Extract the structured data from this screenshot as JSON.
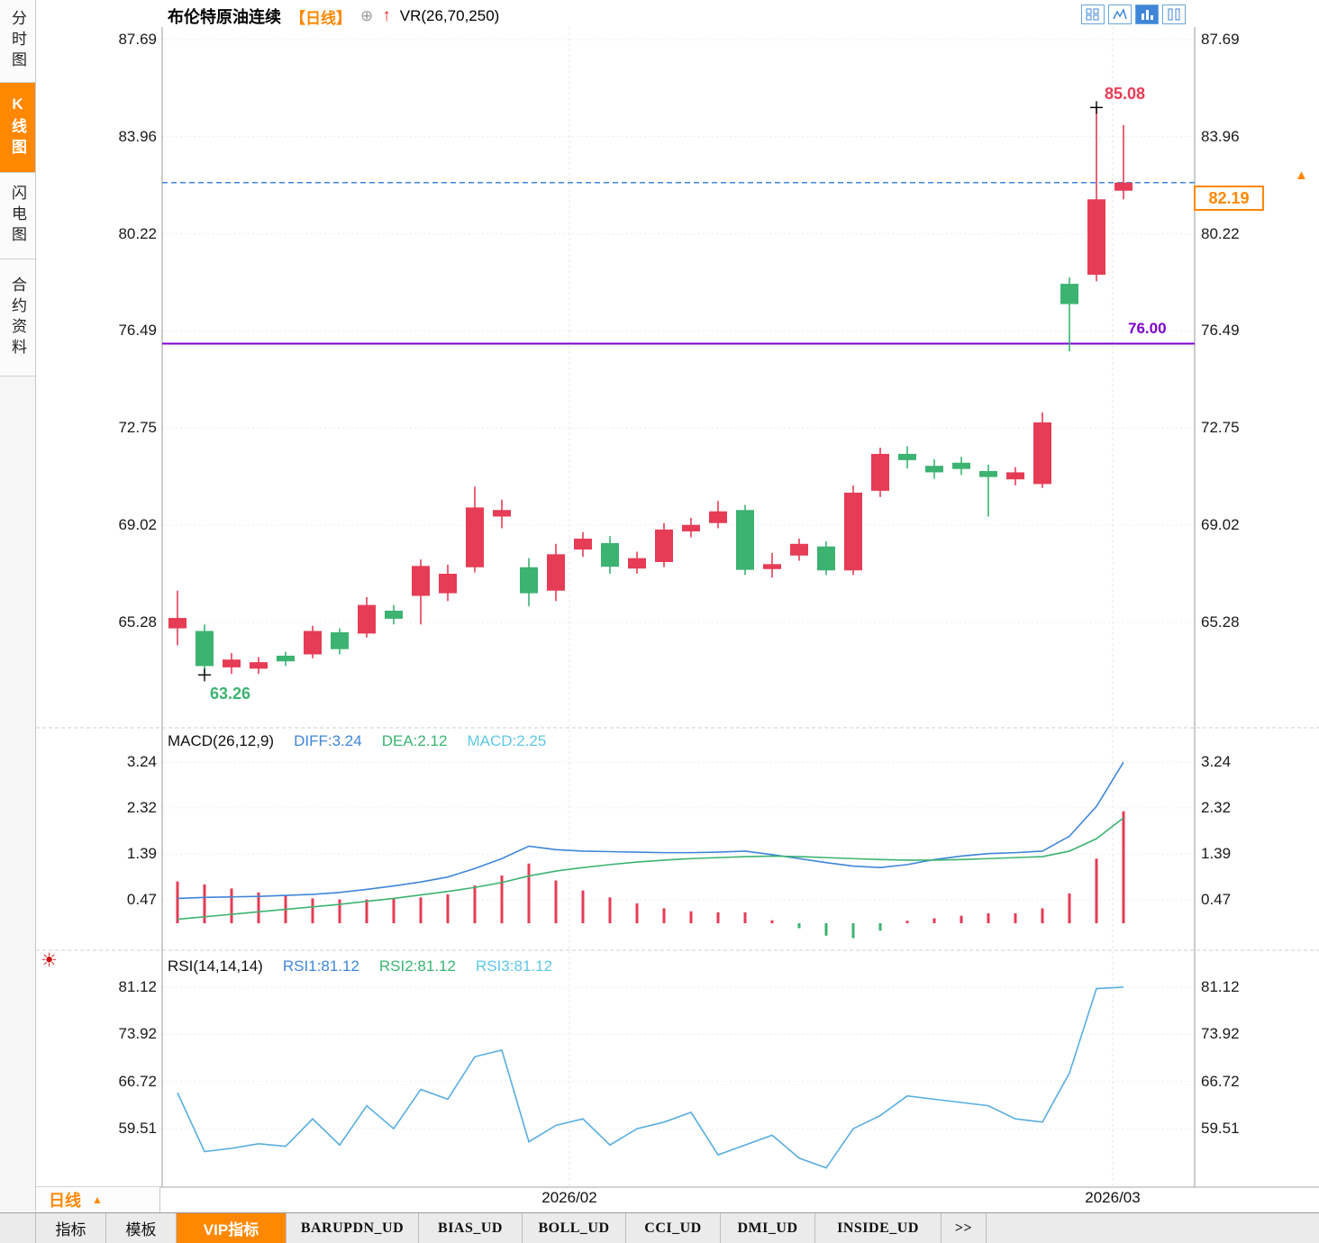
{
  "sidebar": {
    "items": [
      {
        "label": "分时图",
        "active": false
      },
      {
        "label": "K线图",
        "active": true
      },
      {
        "label": "闪电图",
        "active": false
      },
      {
        "label": "合约资料",
        "active": false
      }
    ]
  },
  "header": {
    "title": "布伦特原油连续",
    "period": "【日线】",
    "indicator": "VR(26,70,250)"
  },
  "icons": {
    "add": "⊕",
    "up_arrow": "↑",
    "sun": "☀",
    "tab_arrow": "▲",
    "scroll_arrow": "▲"
  },
  "annotations": {
    "high": "85.08",
    "low": "63.26",
    "support": "76.00",
    "last_price": "82.19"
  },
  "macd_header": {
    "title": "MACD(26,12,9)",
    "diff": "DIFF:3.24",
    "dea": "DEA:2.12",
    "macd": "MACD:2.25"
  },
  "rsi_header": {
    "title": "RSI(14,14,14)",
    "rsi1": "RSI1:81.12",
    "rsi2": "RSI2:81.12",
    "rsi3": "RSI3:81.12"
  },
  "x_axis": {
    "labels": [
      "2026/02",
      "2026/03"
    ]
  },
  "bottom": {
    "period": "日线",
    "tabs": [
      "指标",
      "模板",
      "VIP指标",
      "BARUPDN_UD",
      "BIAS_UD",
      "BOLL_UD",
      "CCI_UD",
      "DMI_UD",
      "INSIDE_UD",
      ">>"
    ]
  },
  "chart_data": {
    "type": "candlestick",
    "title": "布伦特原油连续 日线",
    "y_ticks": [
      87.69,
      83.96,
      80.22,
      76.49,
      72.75,
      69.02,
      65.28
    ],
    "x_labels": [
      "2026/02",
      "2026/03"
    ],
    "x_label_positions": [
      14.5,
      34.6
    ],
    "current_price": 82.19,
    "support_level": 76.0,
    "high_marker": {
      "index": 34,
      "value": 85.08
    },
    "low_marker": {
      "index": 1,
      "value": 63.26
    },
    "colors": {
      "up": "#e63c55",
      "down": "#3cb371",
      "diff_line": "#3f86d9",
      "dea_line": "#3cb371",
      "rsi_line": "#58aee0",
      "dashed_price_line": "#3f86d9",
      "support_line": "#8000cc",
      "accent_orange": "#ff8800"
    },
    "candles": [
      [
        65.05,
        66.5,
        64.4,
        65.45
      ],
      [
        64.95,
        65.2,
        63.26,
        63.6
      ],
      [
        63.55,
        64.1,
        63.3,
        63.85
      ],
      [
        63.5,
        63.95,
        63.3,
        63.75
      ],
      [
        64.0,
        64.15,
        63.6,
        63.78
      ],
      [
        64.05,
        65.15,
        63.9,
        64.95
      ],
      [
        64.9,
        65.05,
        64.05,
        64.25
      ],
      [
        64.85,
        66.25,
        64.7,
        65.95
      ],
      [
        65.73,
        65.95,
        65.2,
        65.42
      ],
      [
        66.3,
        67.7,
        65.2,
        67.45
      ],
      [
        66.4,
        67.5,
        66.1,
        67.15
      ],
      [
        67.4,
        70.5,
        67.2,
        69.7
      ],
      [
        69.35,
        70.0,
        68.9,
        69.6
      ],
      [
        67.4,
        67.75,
        65.9,
        66.4
      ],
      [
        66.5,
        68.3,
        66.1,
        67.9
      ],
      [
        68.08,
        68.75,
        67.8,
        68.5
      ],
      [
        68.33,
        68.6,
        67.15,
        67.42
      ],
      [
        67.35,
        68.0,
        67.15,
        67.75
      ],
      [
        67.6,
        69.1,
        67.4,
        68.85
      ],
      [
        68.78,
        69.3,
        68.55,
        69.03
      ],
      [
        69.1,
        69.95,
        68.9,
        69.55
      ],
      [
        69.6,
        69.8,
        67.1,
        67.3
      ],
      [
        67.33,
        67.95,
        67.0,
        67.52
      ],
      [
        67.85,
        68.5,
        67.65,
        68.3
      ],
      [
        68.2,
        68.4,
        67.1,
        67.28
      ],
      [
        67.28,
        70.55,
        67.1,
        70.27
      ],
      [
        70.34,
        72.0,
        70.1,
        71.76
      ],
      [
        71.76,
        72.05,
        71.2,
        71.52
      ],
      [
        71.3,
        71.55,
        70.8,
        71.05
      ],
      [
        71.42,
        71.65,
        70.95,
        71.18
      ],
      [
        71.1,
        71.35,
        69.35,
        70.87
      ],
      [
        70.78,
        71.25,
        70.55,
        71.05
      ],
      [
        70.6,
        73.35,
        70.45,
        72.97
      ],
      [
        78.3,
        78.55,
        75.7,
        77.52
      ],
      [
        78.65,
        85.08,
        78.4,
        81.55
      ],
      [
        81.88,
        84.4,
        81.55,
        82.19
      ]
    ],
    "macd": {
      "type": "bar+line",
      "params": "(26,12,9)",
      "y_ticks": [
        3.24,
        2.32,
        1.39,
        0.47
      ],
      "diff": [
        0.5,
        0.52,
        0.53,
        0.54,
        0.56,
        0.58,
        0.62,
        0.68,
        0.75,
        0.83,
        0.93,
        1.1,
        1.3,
        1.55,
        1.48,
        1.45,
        1.44,
        1.43,
        1.42,
        1.42,
        1.43,
        1.45,
        1.38,
        1.3,
        1.22,
        1.15,
        1.12,
        1.18,
        1.28,
        1.35,
        1.4,
        1.42,
        1.45,
        1.75,
        2.35,
        3.24
      ],
      "dea": [
        0.08,
        0.13,
        0.18,
        0.23,
        0.28,
        0.33,
        0.38,
        0.44,
        0.5,
        0.57,
        0.64,
        0.72,
        0.82,
        0.95,
        1.05,
        1.12,
        1.18,
        1.23,
        1.27,
        1.3,
        1.32,
        1.34,
        1.35,
        1.34,
        1.32,
        1.3,
        1.28,
        1.27,
        1.27,
        1.28,
        1.3,
        1.32,
        1.34,
        1.45,
        1.7,
        2.12
      ],
      "hist": [
        0.84,
        0.78,
        0.7,
        0.62,
        0.56,
        0.5,
        0.48,
        0.48,
        0.5,
        0.52,
        0.58,
        0.76,
        0.96,
        1.2,
        0.86,
        0.66,
        0.52,
        0.4,
        0.3,
        0.24,
        0.22,
        0.22,
        0.06,
        -0.1,
        -0.25,
        -0.3,
        -0.15,
        0.05,
        0.1,
        0.15,
        0.2,
        0.2,
        0.3,
        0.6,
        1.3,
        2.25
      ]
    },
    "rsi": {
      "type": "line",
      "params": "(14,14,14)",
      "y_ticks": [
        81.12,
        73.92,
        66.72,
        59.51
      ],
      "values": [
        65.0,
        56.0,
        56.5,
        57.2,
        56.8,
        61.0,
        57.0,
        63.0,
        59.5,
        65.5,
        64.0,
        70.5,
        71.5,
        57.5,
        60.0,
        61.0,
        57.0,
        59.5,
        60.5,
        62.0,
        55.5,
        57.0,
        58.5,
        55.0,
        53.5,
        59.5,
        61.5,
        64.5,
        64.0,
        63.5,
        63.0,
        61.0,
        60.5,
        68.0,
        80.9,
        81.12
      ]
    }
  }
}
